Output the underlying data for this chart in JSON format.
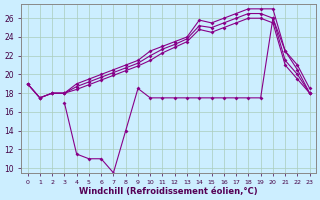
{
  "xlabel": "Windchill (Refroidissement éolien,°C)",
  "bg_color": "#cceeff",
  "line_color": "#880088",
  "line_a_x": [
    0,
    1,
    2,
    3,
    4,
    5,
    6,
    7,
    8,
    9,
    10,
    11,
    12,
    13,
    14,
    15,
    16,
    17,
    18,
    19,
    20,
    21,
    22,
    23
  ],
  "line_a_y": [
    19,
    17.5,
    18,
    18,
    19,
    19.5,
    20,
    20.5,
    21,
    21.5,
    22.5,
    23,
    23.5,
    24,
    25.8,
    25.5,
    26,
    26.5,
    27,
    27,
    27,
    22.5,
    20.5,
    18
  ],
  "line_b_x": [
    0,
    1,
    2,
    3,
    4,
    5,
    6,
    7,
    8,
    9,
    10,
    11,
    12,
    13,
    14,
    15,
    16,
    17,
    18,
    19,
    20,
    21,
    22,
    23
  ],
  "line_b_y": [
    19,
    17.5,
    18,
    18,
    18.7,
    19.2,
    19.7,
    20.2,
    20.7,
    21.2,
    22,
    22.7,
    23.2,
    23.8,
    25.2,
    25,
    25.5,
    26,
    26.5,
    26.5,
    26,
    21.5,
    20,
    18
  ],
  "line_c_x": [
    0,
    1,
    2,
    3,
    4,
    5,
    6,
    7,
    8,
    9,
    10,
    11,
    12,
    13,
    14,
    15,
    16,
    17,
    18,
    19,
    20,
    21,
    22,
    23
  ],
  "line_c_y": [
    19,
    17.5,
    18,
    18,
    18.4,
    18.9,
    19.4,
    19.9,
    20.4,
    20.9,
    21.5,
    22.3,
    22.9,
    23.5,
    24.8,
    24.5,
    25,
    25.5,
    26,
    26,
    25.5,
    21,
    19.5,
    18
  ],
  "line_wc_x": [
    3,
    4,
    5,
    6,
    7,
    8,
    9,
    10,
    11,
    12,
    13,
    14,
    15,
    16,
    17,
    18,
    19,
    20,
    21,
    22,
    23
  ],
  "line_wc_y": [
    17,
    11.5,
    11,
    11,
    9.5,
    14,
    18.5,
    17.5,
    17.5,
    17.5,
    17.5,
    17.5,
    17.5,
    17.5,
    17.5,
    17.5,
    17.5,
    26,
    22.5,
    21,
    18.5
  ],
  "ylim": [
    9.5,
    27.5
  ],
  "xlim": [
    -0.5,
    23.5
  ],
  "yticks": [
    10,
    12,
    14,
    16,
    18,
    20,
    22,
    24,
    26
  ],
  "xticks": [
    0,
    1,
    2,
    3,
    4,
    5,
    6,
    7,
    8,
    9,
    10,
    11,
    12,
    13,
    14,
    15,
    16,
    17,
    18,
    19,
    20,
    21,
    22,
    23
  ]
}
